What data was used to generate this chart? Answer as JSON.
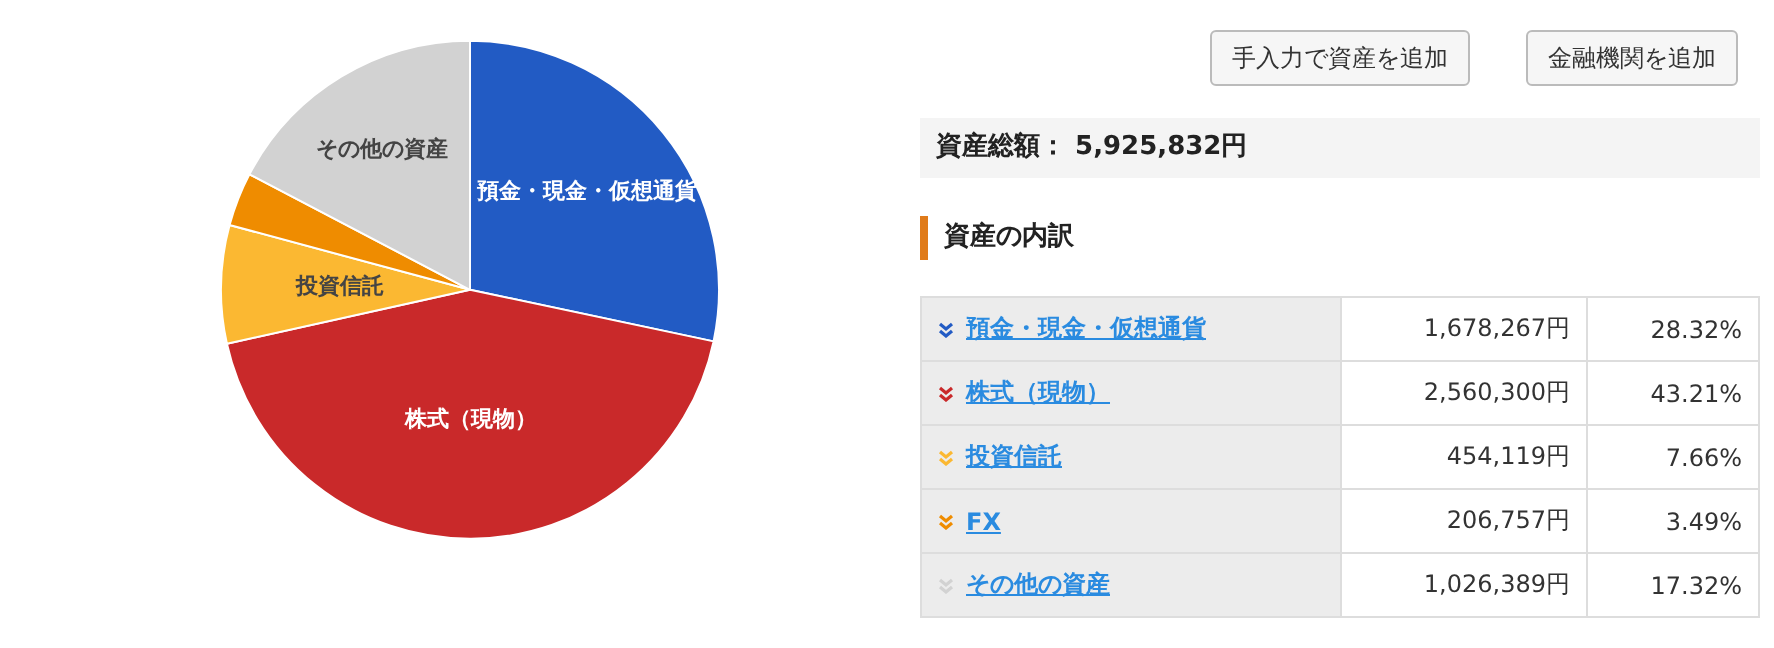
{
  "chart_data": {
    "type": "pie",
    "title": "資産の内訳",
    "subtitle": "資産総額： 5,925,832円",
    "categories": [
      "預金・現金・仮想通貨",
      "株式（現物）",
      "投資信託",
      "FX",
      "その他の資産"
    ],
    "values": [
      1678267,
      2560300,
      454119,
      206757,
      1026389
    ],
    "value_labels": [
      "1,678,267円",
      "2,560,300円",
      "454,119円",
      "206,757円",
      "1,026,389円"
    ],
    "colors": [
      "#225bc4",
      "#c9292a",
      "#fbb832",
      "#ef8c00",
      "#d2d2d2"
    ],
    "legend": "right",
    "annotations": [
      "手入力で資産を追加",
      "金融機関を追加",
      "28.32%",
      "43.21%",
      "7.66%",
      "3.49%",
      "17.32%"
    ]
  }
}
